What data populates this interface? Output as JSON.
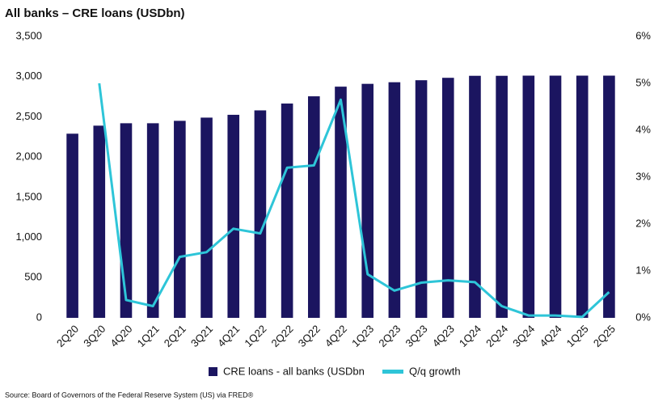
{
  "chart_data": {
    "type": "bar_line",
    "title": "All banks – CRE loans (USDbn)",
    "source": "Source: Board of Governors of the Federal Reserve System (US) via FRED®",
    "categories": [
      "2Q20",
      "3Q20",
      "4Q20",
      "1Q21",
      "2Q21",
      "3Q21",
      "4Q21",
      "1Q22",
      "2Q22",
      "3Q22",
      "4Q22",
      "1Q23",
      "2Q23",
      "3Q23",
      "4Q23",
      "1Q24",
      "2Q24",
      "3Q24",
      "4Q24",
      "1Q25",
      "2Q25"
    ],
    "series": [
      {
        "name": "CRE loans - all banks (USDbn",
        "type": "bar",
        "color": "#1b1560",
        "values": [
          2290,
          2390,
          2420,
          2420,
          2450,
          2490,
          2525,
          2580,
          2665,
          2755,
          2875,
          2910,
          2930,
          2955,
          2985,
          3010,
          3010,
          3012,
          3012,
          3012,
          3012
        ]
      },
      {
        "name": "Q/q growth",
        "type": "line",
        "axis": "y2",
        "color": "#2ec5d8",
        "values": [
          null,
          5.0,
          0.38,
          0.25,
          1.3,
          1.4,
          1.9,
          1.8,
          3.2,
          3.25,
          4.65,
          0.93,
          0.58,
          0.75,
          0.8,
          0.76,
          0.25,
          0.05,
          0.05,
          0.02,
          0.55
        ]
      }
    ],
    "ylim": [
      0,
      3500
    ],
    "yticks": [
      0,
      500,
      {
        "value": 1000,
        "label": "1,000"
      },
      {
        "value": 1500,
        "label": "1,500"
      },
      {
        "value": 2000,
        "label": "2,000"
      },
      {
        "value": 2500,
        "label": "2,500"
      },
      {
        "value": 3000,
        "label": "3,000"
      },
      {
        "value": 3500,
        "label": "3,500"
      }
    ],
    "y2lim": [
      0,
      6
    ],
    "y2ticks": [
      {
        "value": 0,
        "label": "0%"
      },
      {
        "value": 1,
        "label": "1%"
      },
      {
        "value": 2,
        "label": "2%"
      },
      {
        "value": 3,
        "label": "3%"
      },
      {
        "value": 4,
        "label": "4%"
      },
      {
        "value": 5,
        "label": "5%"
      },
      {
        "value": 6,
        "label": "6%"
      }
    ],
    "legend": "bottom"
  }
}
